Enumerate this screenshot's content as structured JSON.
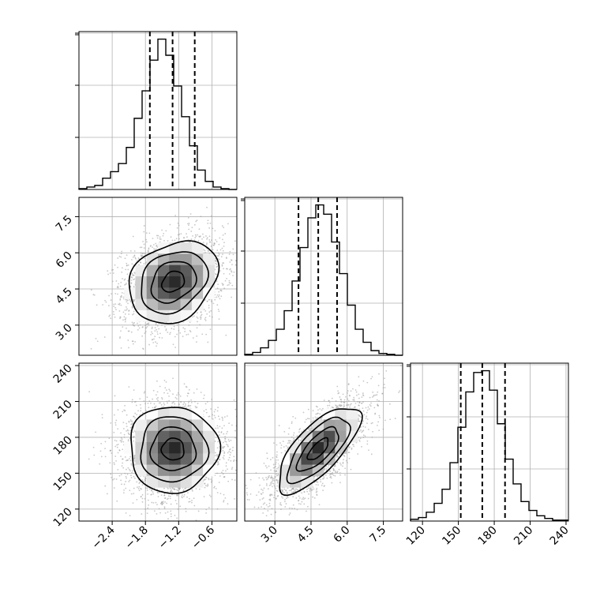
{
  "chart_data": {
    "type": "corner",
    "grid": true,
    "colors": {
      "contour": "#000000",
      "hist": "#000000",
      "scatter": "#9a9a9a",
      "grid": "#b0b0b0"
    },
    "parameters": [
      {
        "range": [
          -3.0,
          -0.15
        ],
        "ticks": [
          -2.4,
          -1.8,
          -1.2,
          -0.6
        ],
        "tick_labels": [
          "−2.4",
          "−1.8",
          "−1.2",
          "−0.6"
        ],
        "quantiles": [
          -1.72,
          -1.31,
          -0.91
        ]
      },
      {
        "range": [
          1.75,
          8.3
        ],
        "ticks": [
          3.0,
          4.5,
          6.0,
          7.5
        ],
        "tick_labels": [
          "3.0",
          "4.5",
          "6.0",
          "7.5"
        ],
        "quantiles": [
          3.98,
          4.8,
          5.58
        ]
      },
      {
        "range": [
          110,
          242
        ],
        "ticks": [
          120,
          150,
          180,
          210,
          240
        ],
        "tick_labels": [
          "120",
          "150",
          "180",
          "210",
          "240"
        ],
        "quantiles": [
          152,
          170,
          189
        ]
      }
    ],
    "histograms": [
      {
        "edges_range": [
          -3.0,
          -0.15
        ],
        "counts": [
          1,
          3,
          5,
          14,
          22,
          32,
          52,
          88,
          122,
          160,
          186,
          166,
          128,
          90,
          54,
          24,
          10,
          3,
          1,
          0
        ]
      },
      {
        "edges_range": [
          1.75,
          8.3
        ],
        "counts": [
          1,
          3,
          8,
          16,
          28,
          48,
          80,
          116,
          148,
          162,
          152,
          122,
          88,
          54,
          28,
          14,
          5,
          2,
          1,
          0
        ]
      },
      {
        "edges_range": [
          110,
          242
        ],
        "counts": [
          2,
          4,
          10,
          20,
          36,
          66,
          106,
          146,
          168,
          170,
          148,
          110,
          70,
          42,
          22,
          12,
          6,
          3,
          1,
          1
        ]
      }
    ],
    "pairs": [
      {
        "x": 0,
        "y": 1,
        "center": [
          -1.3,
          4.8
        ],
        "sigma": [
          0.4,
          0.85
        ],
        "rho": 0.25
      },
      {
        "x": 0,
        "y": 2,
        "center": [
          -1.3,
          170
        ],
        "sigma": [
          0.4,
          18
        ],
        "rho": 0.0
      },
      {
        "x": 1,
        "y": 2,
        "center": [
          4.8,
          170
        ],
        "sigma": [
          0.85,
          18
        ],
        "rho": 0.72
      }
    ]
  }
}
